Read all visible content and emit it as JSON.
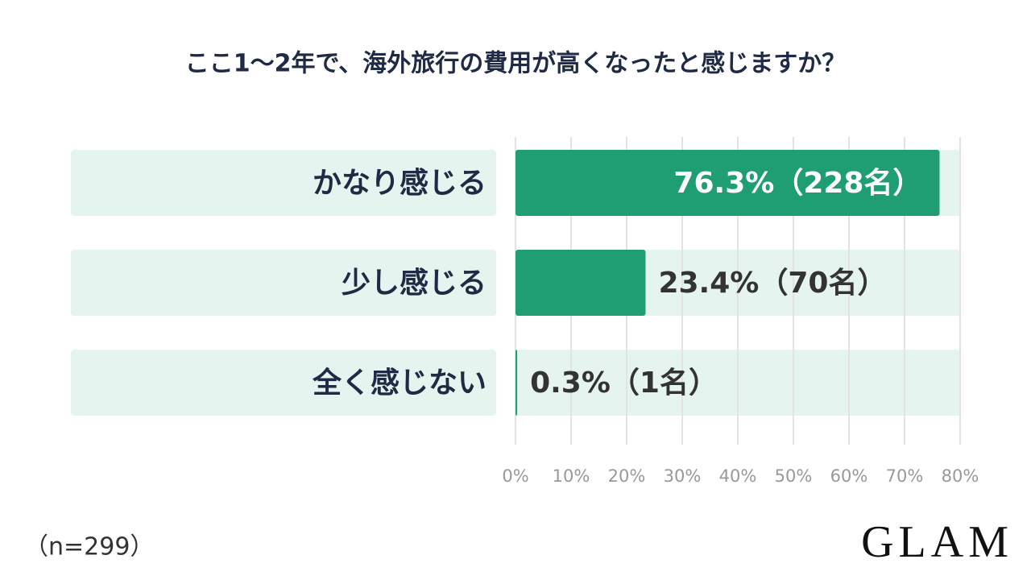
{
  "chart_data": {
    "type": "bar",
    "orientation": "horizontal",
    "title": "ここ1〜2年で、海外旅行の費用が高くなったと感じますか？",
    "categories": [
      "かなり感じる",
      "少し感じる",
      "全く感じない"
    ],
    "values": [
      76.3,
      23.4,
      0.3
    ],
    "value_labels": [
      "76.3%（228名）",
      "23.4%（70名）",
      "0.3%（1名）"
    ],
    "color": "#1f9e74",
    "xlim": [
      0,
      80
    ],
    "xticks": [
      {
        "value": 0,
        "label": "0%"
      },
      {
        "value": 10,
        "label": "10%"
      },
      {
        "value": 20,
        "label": "20%"
      },
      {
        "value": 30,
        "label": "30%"
      },
      {
        "value": 40,
        "label": "40%"
      },
      {
        "value": 50,
        "label": "50%"
      },
      {
        "value": 60,
        "label": "60%"
      },
      {
        "value": 70,
        "label": "70%"
      },
      {
        "value": 80,
        "label": "80%"
      }
    ],
    "grid": true,
    "note": "（n=299）",
    "logo": "GLAM"
  }
}
